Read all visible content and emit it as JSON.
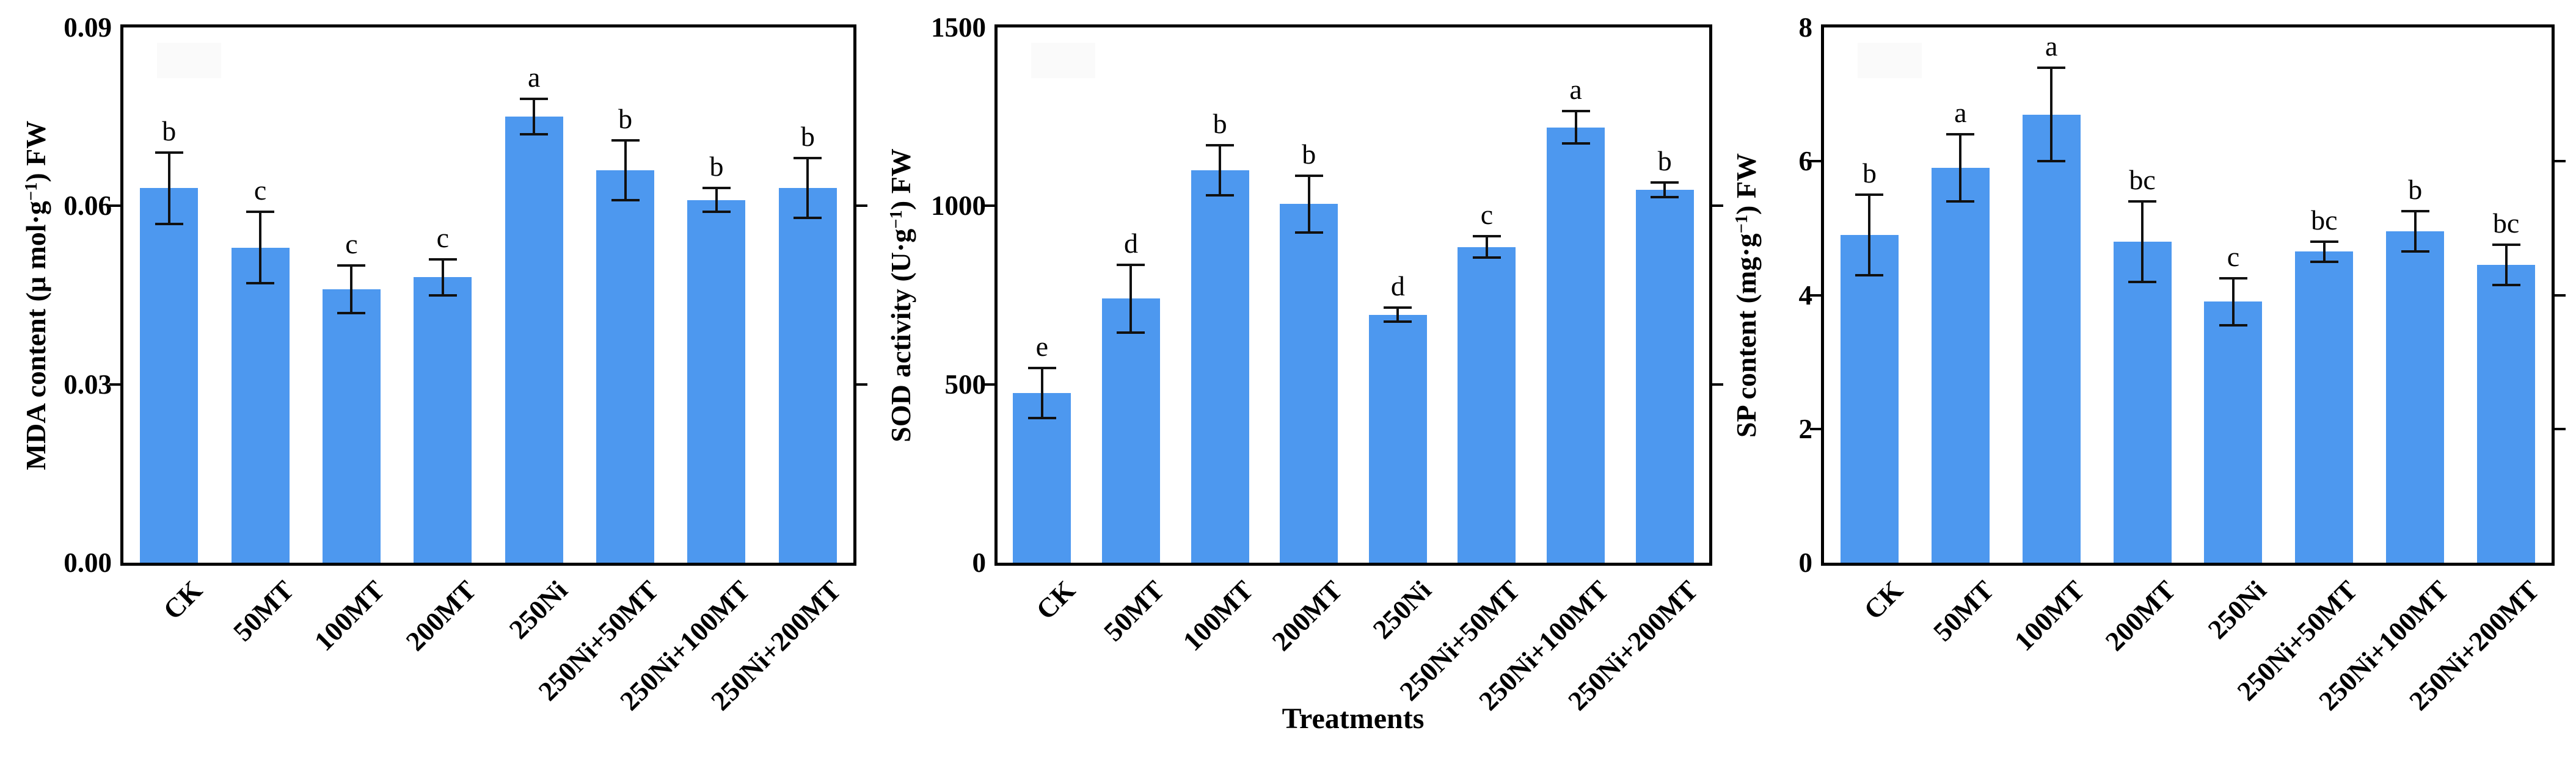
{
  "figure": {
    "xlabel": "Treatments",
    "bar_color": "#4D98EF",
    "error_bar_color": "#111111",
    "axis_color": "#000000",
    "background_color": "#ffffff"
  },
  "chart_data": [
    {
      "type": "bar",
      "title": "",
      "ylabel": "MDA content (μ mol·g⁻¹) FW",
      "ylabel_parts": {
        "pre": "MDA content (μ mol·g",
        "sup": "−1",
        "post": ") FW"
      },
      "xlabel": "Treatments",
      "categories": [
        "CK",
        "50MT",
        "100MT",
        "200MT",
        "250Ni",
        "250Ni+50MT",
        "250Ni+100MT",
        "250Ni+200MT"
      ],
      "values": [
        0.063,
        0.053,
        0.046,
        0.048,
        0.075,
        0.066,
        0.061,
        0.063
      ],
      "errors": [
        0.006,
        0.006,
        0.004,
        0.003,
        0.003,
        0.005,
        0.002,
        0.005
      ],
      "sig_letters": [
        "b",
        "c",
        "c",
        "c",
        "a",
        "b",
        "b",
        "b"
      ],
      "ylim": [
        0,
        0.09
      ],
      "yticks": [
        {
          "value": 0,
          "label": "0.00"
        },
        {
          "value": 0.03,
          "label": "0.03"
        },
        {
          "value": 0.06,
          "label": "0.06"
        },
        {
          "value": 0.09,
          "label": "0.09"
        }
      ],
      "grid": false,
      "legend": "none"
    },
    {
      "type": "bar",
      "title": "",
      "ylabel": "SOD activity (U·g⁻¹) FW",
      "ylabel_parts": {
        "pre": "SOD activity (U·g",
        "sup": "−1",
        "post": ") FW"
      },
      "xlabel": "Treatments",
      "categories": [
        "CK",
        "50MT",
        "100MT",
        "200MT",
        "250Ni",
        "250Ni+50MT",
        "250Ni+100MT",
        "250Ni+200MT"
      ],
      "values": [
        475,
        740,
        1100,
        1005,
        695,
        885,
        1220,
        1045
      ],
      "errors": [
        70,
        95,
        70,
        80,
        20,
        30,
        45,
        20
      ],
      "sig_letters": [
        "e",
        "d",
        "b",
        "b",
        "d",
        "c",
        "a",
        "b"
      ],
      "ylim": [
        0,
        1500
      ],
      "yticks": [
        {
          "value": 0,
          "label": "0"
        },
        {
          "value": 500,
          "label": "500"
        },
        {
          "value": 1000,
          "label": "1000"
        },
        {
          "value": 1500,
          "label": "1500"
        }
      ],
      "grid": false,
      "legend": "none"
    },
    {
      "type": "bar",
      "title": "",
      "ylabel": "SP content (mg·g⁻¹) FW",
      "ylabel_parts": {
        "pre": "SP content (mg·g",
        "sup": "−1",
        "post": ") FW"
      },
      "xlabel": "Treatments",
      "categories": [
        "CK",
        "50MT",
        "100MT",
        "200MT",
        "250Ni",
        "250Ni+50MT",
        "250Ni+100MT",
        "250Ni+200MT"
      ],
      "values": [
        4.9,
        5.9,
        6.7,
        4.8,
        3.9,
        4.65,
        4.95,
        4.45
      ],
      "errors": [
        0.6,
        0.5,
        0.7,
        0.6,
        0.35,
        0.15,
        0.3,
        0.3
      ],
      "sig_letters": [
        "b",
        "a",
        "a",
        "bc",
        "c",
        "bc",
        "b",
        "bc"
      ],
      "ylim": [
        0,
        8
      ],
      "yticks": [
        {
          "value": 0,
          "label": "0"
        },
        {
          "value": 2,
          "label": "2"
        },
        {
          "value": 4,
          "label": "4"
        },
        {
          "value": 6,
          "label": "6"
        },
        {
          "value": 8,
          "label": "8"
        }
      ],
      "grid": false,
      "legend": "none"
    }
  ]
}
